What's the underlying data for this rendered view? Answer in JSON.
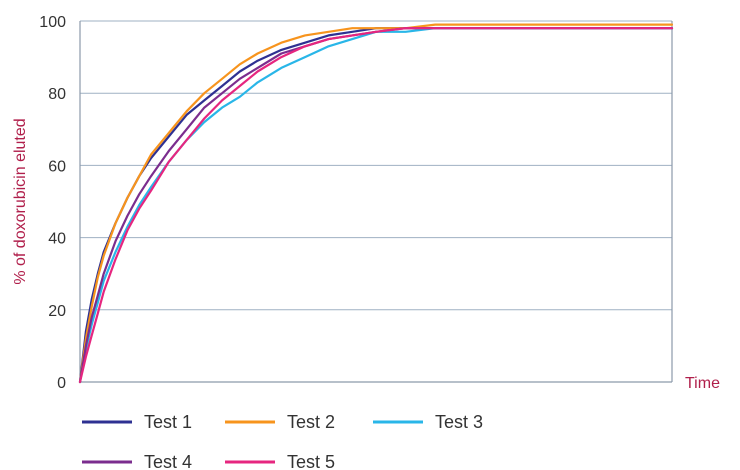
{
  "chart_data": {
    "type": "line",
    "title": "",
    "xlabel": "Time",
    "ylabel": "% of doxorubicin eluted",
    "xlim": [
      0,
      100
    ],
    "ylim": [
      0,
      100
    ],
    "yticks": [
      0,
      20,
      40,
      60,
      80,
      100
    ],
    "grid": "horizontal",
    "legend_position": "bottom",
    "x": [
      0,
      1,
      2,
      3,
      4,
      6,
      8,
      10,
      12,
      15,
      18,
      21,
      24,
      27,
      30,
      34,
      38,
      42,
      46,
      50,
      55,
      60,
      65,
      70,
      75,
      80,
      85,
      90,
      95,
      100
    ],
    "series": [
      {
        "name": "Test 1",
        "color": "#2e3192",
        "values": [
          0,
          14,
          23,
          30,
          36,
          44,
          51,
          57,
          62,
          68,
          74,
          78,
          82,
          86,
          89,
          92,
          94,
          96,
          97,
          98,
          98,
          98,
          98,
          98,
          98,
          98,
          98,
          98,
          98,
          98
        ]
      },
      {
        "name": "Test 2",
        "color": "#f7941d",
        "values": [
          0,
          12,
          21,
          29,
          35,
          44,
          51,
          57,
          63,
          69,
          75,
          80,
          84,
          88,
          91,
          94,
          96,
          97,
          98,
          98,
          98,
          99,
          99,
          99,
          99,
          99,
          99,
          99,
          99,
          99
        ]
      },
      {
        "name": "Test 3",
        "color": "#29b6e8",
        "values": [
          0,
          9,
          16,
          22,
          28,
          36,
          43,
          49,
          54,
          61,
          67,
          72,
          76,
          79,
          83,
          87,
          90,
          93,
          95,
          97,
          97,
          98,
          98,
          98,
          98,
          98,
          98,
          98,
          98,
          98
        ]
      },
      {
        "name": "Test 4",
        "color": "#7b2d8e",
        "values": [
          0,
          10,
          18,
          24,
          30,
          39,
          46,
          52,
          57,
          64,
          70,
          76,
          80,
          84,
          87,
          91,
          93,
          95,
          96,
          97,
          98,
          98,
          98,
          98,
          98,
          98,
          98,
          98,
          98,
          98
        ]
      },
      {
        "name": "Test 5",
        "color": "#e6267f",
        "values": [
          0,
          7,
          13,
          19,
          25,
          34,
          42,
          48,
          53,
          61,
          67,
          73,
          78,
          82,
          86,
          90,
          93,
          95,
          96,
          97,
          98,
          98,
          98,
          98,
          98,
          98,
          98,
          98,
          98,
          98
        ]
      }
    ],
    "colors": {
      "grid": "#9fb1c3",
      "axis": "#8c9aab",
      "axis_title": "#b01f4b",
      "tick": "#333333"
    }
  }
}
